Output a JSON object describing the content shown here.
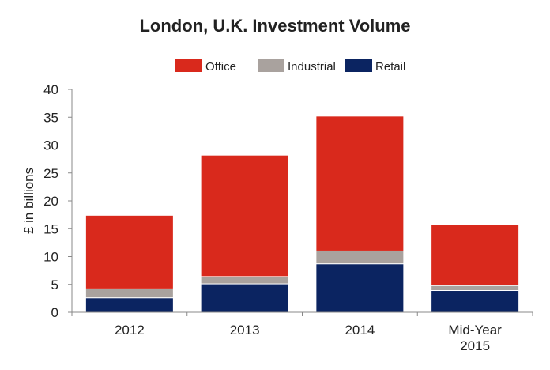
{
  "chart_data": {
    "type": "bar",
    "stacked": true,
    "title": "London, U.K. Investment Volume",
    "xlabel": "",
    "ylabel": "£ in billions",
    "ylim": [
      0,
      40
    ],
    "yticks": [
      0,
      5,
      10,
      15,
      20,
      25,
      30,
      35,
      40
    ],
    "grid": false,
    "legend_position": "top-center",
    "categories": [
      [
        "2012"
      ],
      [
        "2013"
      ],
      [
        "2014"
      ],
      [
        "Mid-Year",
        "2015"
      ]
    ],
    "series": [
      {
        "name": "Retail",
        "color": "#0b2461",
        "values": [
          2.6,
          5.1,
          8.7,
          3.9
        ]
      },
      {
        "name": "Industrial",
        "color": "#a9a29e",
        "values": [
          1.6,
          1.3,
          2.3,
          0.9
        ]
      },
      {
        "name": "Office",
        "color": "#d9291c",
        "values": [
          13.2,
          21.8,
          24.2,
          11.0
        ]
      }
    ],
    "legend_order": [
      "Office",
      "Industrial",
      "Retail"
    ]
  }
}
